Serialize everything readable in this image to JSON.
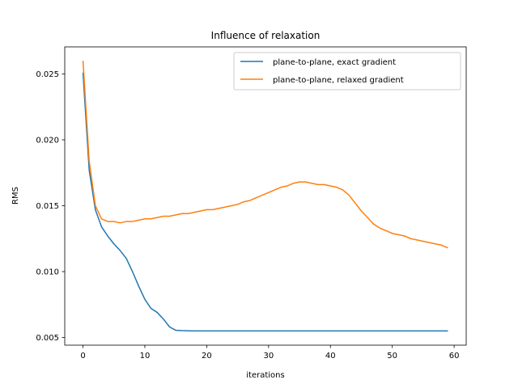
{
  "chart_data": {
    "type": "line",
    "title": "Influence of relaxation",
    "xlabel": "iterations",
    "ylabel": "RMS",
    "xlim": [
      -2.95,
      61.95
    ],
    "ylim": [
      0.00442,
      0.02705
    ],
    "xticks": [
      0,
      10,
      20,
      30,
      40,
      50,
      60
    ],
    "yticks": [
      0.005,
      0.01,
      0.015,
      0.02,
      0.025
    ],
    "ytick_labels": [
      "0.005",
      "0.010",
      "0.015",
      "0.020",
      "0.025"
    ],
    "legend_position": "top-right",
    "grid": false,
    "x": [
      0,
      1,
      2,
      3,
      4,
      5,
      6,
      7,
      8,
      9,
      10,
      11,
      12,
      13,
      14,
      15,
      16,
      17,
      18,
      19,
      20,
      21,
      22,
      23,
      24,
      25,
      26,
      27,
      28,
      29,
      30,
      31,
      32,
      33,
      34,
      35,
      36,
      37,
      38,
      39,
      40,
      41,
      42,
      43,
      44,
      45,
      46,
      47,
      48,
      49,
      50,
      51,
      52,
      53,
      54,
      55,
      56,
      57,
      58,
      59
    ],
    "series": [
      {
        "name": "plane-to-plane, exact gradient",
        "color": "#1f77b4",
        "values": [
          0.0251,
          0.0177,
          0.0147,
          0.0134,
          0.0127,
          0.0121,
          0.0116,
          0.011,
          0.01,
          0.0089,
          0.0079,
          0.0072,
          0.0069,
          0.0064,
          0.0058,
          0.00555,
          0.00552,
          0.00551,
          0.0055,
          0.0055,
          0.0055,
          0.0055,
          0.0055,
          0.0055,
          0.0055,
          0.0055,
          0.0055,
          0.0055,
          0.0055,
          0.0055,
          0.0055,
          0.0055,
          0.0055,
          0.0055,
          0.0055,
          0.0055,
          0.0055,
          0.0055,
          0.0055,
          0.0055,
          0.0055,
          0.0055,
          0.0055,
          0.0055,
          0.0055,
          0.0055,
          0.0055,
          0.0055,
          0.0055,
          0.0055,
          0.0055,
          0.0055,
          0.0055,
          0.0055,
          0.0055,
          0.0055,
          0.0055,
          0.0055,
          0.0055,
          0.0055
        ]
      },
      {
        "name": "plane-to-plane, relaxed gradient",
        "color": "#ff7f0e",
        "values": [
          0.026,
          0.0184,
          0.015,
          0.014,
          0.0138,
          0.0138,
          0.0137,
          0.0138,
          0.0138,
          0.0139,
          0.014,
          0.014,
          0.0141,
          0.0142,
          0.0142,
          0.0143,
          0.0144,
          0.0144,
          0.0145,
          0.0146,
          0.0147,
          0.0147,
          0.0148,
          0.0149,
          0.015,
          0.0151,
          0.0153,
          0.0154,
          0.0156,
          0.0158,
          0.016,
          0.0162,
          0.0164,
          0.0165,
          0.0167,
          0.0168,
          0.0168,
          0.0167,
          0.0166,
          0.0166,
          0.0165,
          0.0164,
          0.0162,
          0.0158,
          0.0152,
          0.0146,
          0.0141,
          0.0136,
          0.0133,
          0.0131,
          0.0129,
          0.0128,
          0.0127,
          0.0125,
          0.0124,
          0.0123,
          0.0122,
          0.0121,
          0.012,
          0.0118
        ]
      }
    ]
  }
}
